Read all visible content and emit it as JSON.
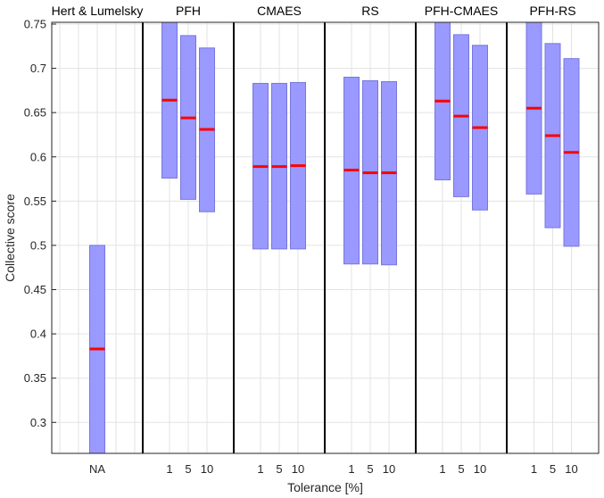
{
  "chart_data": {
    "type": "box",
    "ylabel": "Collective score",
    "xlabel": "Tolerance [%]",
    "ylim": [
      0.265,
      0.752
    ],
    "yticks": [
      0.3,
      0.35,
      0.4,
      0.45,
      0.5,
      0.55,
      0.6,
      0.65,
      0.7,
      0.75
    ],
    "ytick_labels": [
      "0.3",
      "0.35",
      "0.4",
      "0.45",
      "0.5",
      "0.55",
      "0.6",
      "0.65",
      "0.7",
      "0.75"
    ],
    "grid": true,
    "colors": {
      "box_fill": "#9999ff",
      "box_edge": "#7777dd",
      "median": "#ff0000",
      "separator": "#000000",
      "grid": "#e3e3e3"
    },
    "groups": [
      {
        "title": "Hert & Lumelsky",
        "boxes": [
          {
            "label": "NA",
            "low": 0.265,
            "high": 0.5,
            "median": 0.383
          }
        ]
      },
      {
        "title": "PFH",
        "boxes": [
          {
            "label": "1",
            "low": 0.576,
            "high": 0.752,
            "median": 0.664
          },
          {
            "label": "5",
            "low": 0.552,
            "high": 0.737,
            "median": 0.644
          },
          {
            "label": "10",
            "low": 0.538,
            "high": 0.723,
            "median": 0.631
          }
        ]
      },
      {
        "title": "CMAES",
        "boxes": [
          {
            "label": "1",
            "low": 0.496,
            "high": 0.683,
            "median": 0.589
          },
          {
            "label": "5",
            "low": 0.496,
            "high": 0.683,
            "median": 0.589
          },
          {
            "label": "10",
            "low": 0.496,
            "high": 0.684,
            "median": 0.59
          }
        ]
      },
      {
        "title": "RS",
        "boxes": [
          {
            "label": "1",
            "low": 0.479,
            "high": 0.69,
            "median": 0.585
          },
          {
            "label": "5",
            "low": 0.479,
            "high": 0.686,
            "median": 0.582
          },
          {
            "label": "10",
            "low": 0.478,
            "high": 0.685,
            "median": 0.582
          }
        ]
      },
      {
        "title": "PFH-CMAES",
        "boxes": [
          {
            "label": "1",
            "low": 0.574,
            "high": 0.752,
            "median": 0.663
          },
          {
            "label": "5",
            "low": 0.555,
            "high": 0.738,
            "median": 0.646
          },
          {
            "label": "10",
            "low": 0.54,
            "high": 0.726,
            "median": 0.633
          }
        ]
      },
      {
        "title": "PFH-RS",
        "boxes": [
          {
            "label": "1",
            "low": 0.558,
            "high": 0.752,
            "median": 0.655
          },
          {
            "label": "5",
            "low": 0.52,
            "high": 0.728,
            "median": 0.624
          },
          {
            "label": "10",
            "low": 0.499,
            "high": 0.711,
            "median": 0.605
          }
        ]
      }
    ]
  }
}
